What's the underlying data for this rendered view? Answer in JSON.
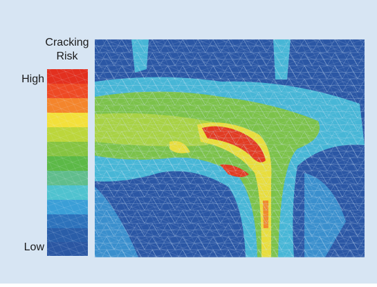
{
  "legend": {
    "title": [
      "Cracking",
      "Risk"
    ],
    "high": "High",
    "low": "Low"
  }
}
